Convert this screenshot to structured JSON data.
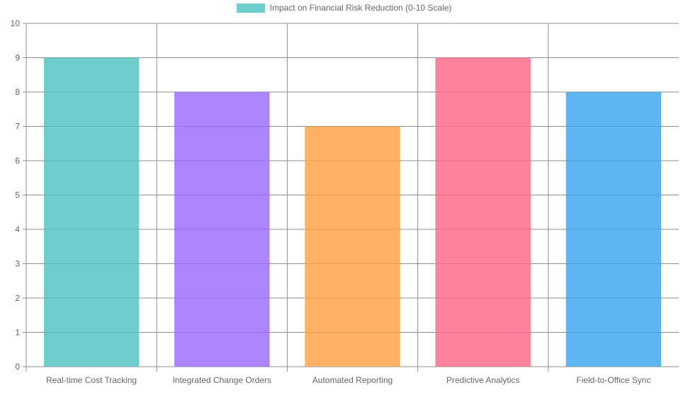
{
  "chart_data": {
    "type": "bar",
    "title": "",
    "xlabel": "",
    "ylabel": "",
    "legend": {
      "label": "Impact on Financial Risk Reduction (0-10 Scale)",
      "position": "top",
      "swatch_color": "rgba(75, 192, 192, 0.8)"
    },
    "categories": [
      "Real-time Cost Tracking",
      "Integrated Change Orders",
      "Automated Reporting",
      "Predictive Analytics",
      "Field-to-Office Sync"
    ],
    "values": [
      9,
      8,
      7,
      9,
      8
    ],
    "bar_colors": [
      "rgba(75, 192, 192, 0.8)",
      "rgba(153, 102, 255, 0.8)",
      "rgba(255, 159, 64, 0.8)",
      "rgba(255, 99, 132, 0.8)",
      "rgba(54, 162, 235, 0.8)"
    ],
    "ylim": [
      0,
      10
    ],
    "yticks": [
      0,
      1,
      2,
      3,
      4,
      5,
      6,
      7,
      8,
      9,
      10
    ],
    "grid": true,
    "grid_color": "#8f8f8f",
    "tick_label_color": "#666666"
  }
}
